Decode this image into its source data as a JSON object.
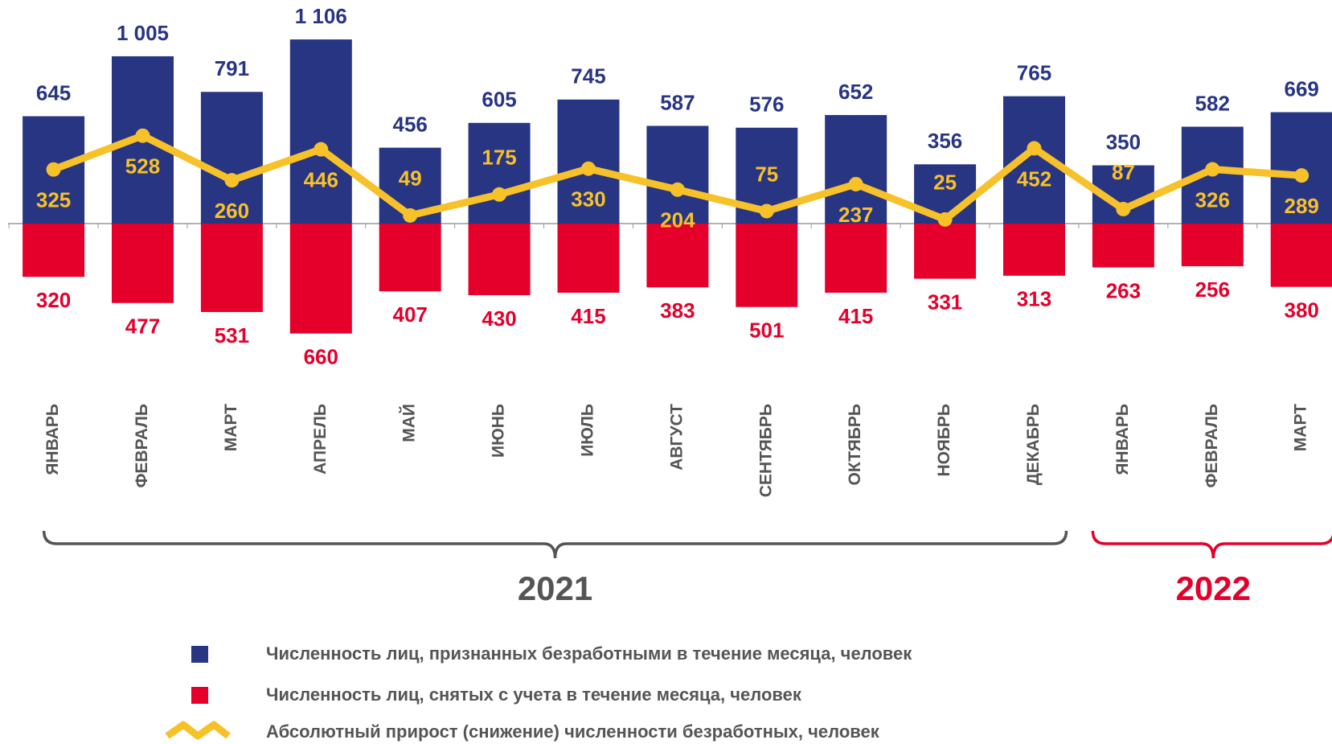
{
  "chart_data": {
    "type": "bar",
    "categories": [
      "ЯНВАРЬ",
      "ФЕВРАЛЬ",
      "МАРТ",
      "АПРЕЛЬ",
      "МАЙ",
      "ИЮНЬ",
      "ИЮЛЬ",
      "АВГУСТ",
      "СЕНТЯБРЬ",
      "ОКТЯБРЬ",
      "НОЯБРЬ",
      "ДЕКАБРЬ",
      "ЯНВАРЬ",
      "ФЕВРАЛЬ",
      "МАРТ"
    ],
    "series": [
      {
        "name": "Численность лиц, признанных безработными в течение месяца, человек",
        "color": "#283583",
        "kind": "bar-up",
        "values": [
          645,
          1005,
          791,
          1106,
          456,
          605,
          745,
          587,
          576,
          652,
          356,
          765,
          350,
          582,
          669
        ],
        "value_labels": [
          "645",
          "1 005",
          "791",
          "1 106",
          "456",
          "605",
          "745",
          "587",
          "576",
          "652",
          "356",
          "765",
          "350",
          "582",
          "669"
        ]
      },
      {
        "name": "Численность лиц, снятых с учета в течение месяца, человек",
        "color": "#e4002b",
        "kind": "bar-down",
        "values": [
          320,
          477,
          531,
          660,
          407,
          430,
          415,
          383,
          501,
          415,
          331,
          313,
          263,
          256,
          380
        ]
      },
      {
        "name": "Абсолютный прирост (снижение) численности безработных, человек",
        "color": "#f7c12a",
        "kind": "line",
        "values": [
          325,
          528,
          260,
          446,
          49,
          175,
          330,
          204,
          75,
          237,
          25,
          452,
          87,
          326,
          289
        ]
      }
    ],
    "groups": [
      {
        "label": "2021",
        "span": 12,
        "color": "#555555"
      },
      {
        "label": "2022",
        "span": 3,
        "color": "#e4002b"
      }
    ]
  }
}
